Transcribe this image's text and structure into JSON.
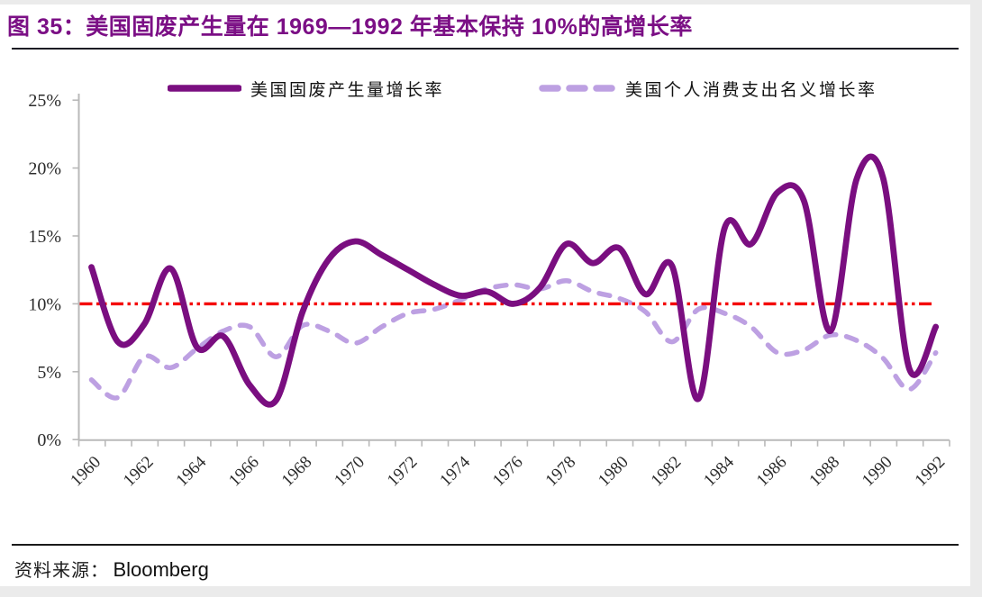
{
  "header": {
    "title": "图 35：美国固废产生量在 1969—1992 年基本保持 10%的高增长率",
    "title_color": "#7b0f85"
  },
  "footer": {
    "source_label": "资料来源：",
    "source_value": "Bloomberg"
  },
  "colors": {
    "solid_series": "#7a0e80",
    "dashed_series": "#bda0e2",
    "reference_line": "#f40000",
    "axis": "#b9b9b9",
    "tick_text": "#2b2b2b"
  },
  "chart_data": {
    "type": "line",
    "title": "图 35：美国固废产生量在 1969—1992 年基本保持 10%的高增长率",
    "x": [
      1960,
      1961,
      1962,
      1963,
      1964,
      1965,
      1966,
      1967,
      1968,
      1969,
      1970,
      1971,
      1972,
      1973,
      1974,
      1975,
      1976,
      1977,
      1978,
      1979,
      1980,
      1981,
      1982,
      1983,
      1984,
      1985,
      1986,
      1987,
      1988,
      1989,
      1990,
      1991,
      1992
    ],
    "series": [
      {
        "name": "美国固废产生量增长率",
        "style": "solid",
        "color": "#7a0e80",
        "values": [
          12.7,
          7.2,
          8.5,
          12.6,
          6.8,
          7.6,
          4.0,
          2.9,
          9.4,
          13.3,
          14.6,
          13.6,
          12.5,
          11.4,
          10.6,
          10.9,
          10.0,
          11.2,
          14.4,
          13.0,
          14.1,
          10.7,
          12.8,
          3.0,
          15.6,
          14.4,
          18.2,
          17.6,
          8.0,
          19.2,
          19.3,
          5.2,
          8.3
        ]
      },
      {
        "name": "美国个人消费支出名义增长率",
        "style": "dashed",
        "color": "#bda0e2",
        "values": [
          4.4,
          3.1,
          6.1,
          5.3,
          6.7,
          8.0,
          8.3,
          6.1,
          8.4,
          8.0,
          7.1,
          8.3,
          9.3,
          9.6,
          10.3,
          11.1,
          11.4,
          11.1,
          11.7,
          10.9,
          10.4,
          9.4,
          7.2,
          9.6,
          9.3,
          8.3,
          6.4,
          6.6,
          7.7,
          7.3,
          6.0,
          3.7,
          6.4
        ]
      }
    ],
    "reference_line": {
      "value": 10,
      "style": "dash-dot-dot",
      "color": "#f40000"
    },
    "ylim": [
      0,
      25
    ],
    "ytick_values": [
      0,
      5,
      10,
      15,
      20,
      25
    ],
    "ytick_labels": [
      "0%",
      "5%",
      "10%",
      "15%",
      "20%",
      "25%"
    ],
    "xtick_labels": [
      "1960",
      "1962",
      "1964",
      "1966",
      "1968",
      "1970",
      "1972",
      "1974",
      "1976",
      "1978",
      "1980",
      "1982",
      "1984",
      "1986",
      "1988",
      "1990",
      "1992"
    ],
    "legend_position": "top",
    "grid": false
  }
}
